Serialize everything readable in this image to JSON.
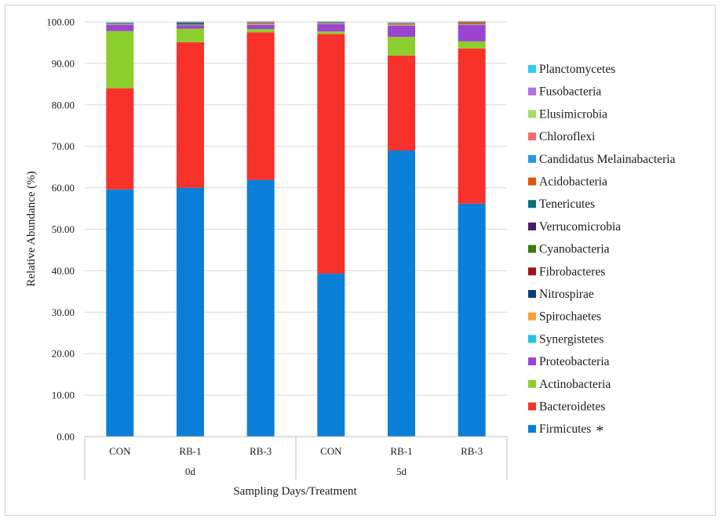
{
  "chart_data": {
    "type": "bar",
    "stacked": true,
    "title": "",
    "xlabel": "Sampling Days/Treatment",
    "ylabel": "Relative Abundance (%)",
    "ylim": [
      0,
      100
    ],
    "yticks": [
      "0.00",
      "10.00",
      "20.00",
      "30.00",
      "40.00",
      "50.00",
      "60.00",
      "70.00",
      "80.00",
      "90.00",
      "100.00"
    ],
    "grid": true,
    "legend_position": "right",
    "categories": [
      "CON",
      "RB-1",
      "RB-3",
      "CON",
      "RB-1",
      "RB-3"
    ],
    "groups": [
      {
        "label": "0d",
        "categories": [
          "CON",
          "RB-1",
          "RB-3"
        ]
      },
      {
        "label": "5d",
        "categories": [
          "CON",
          "RB-1",
          "RB-3"
        ]
      }
    ],
    "series": [
      {
        "name": "Firmicutes",
        "color": "#0a7fd8",
        "values": [
          59.6,
          60.0,
          61.9,
          39.3,
          69.0,
          56.2
        ]
      },
      {
        "name": "Bacteroidetes",
        "color": "#f8312b",
        "values": [
          24.4,
          35.1,
          35.6,
          57.8,
          22.9,
          37.4
        ]
      },
      {
        "name": "Actinobacteria",
        "color": "#8ccf2c",
        "values": [
          13.8,
          3.3,
          0.8,
          0.6,
          4.5,
          1.7
        ]
      },
      {
        "name": "Proteobacteria",
        "color": "#9b45d2",
        "values": [
          1.5,
          0.8,
          1.0,
          1.8,
          2.7,
          4.0
        ]
      },
      {
        "name": "Synergistetes",
        "color": "#20c4e3",
        "values": [
          0.05,
          0.05,
          0.05,
          0.05,
          0.05,
          0.05
        ]
      },
      {
        "name": "Spirochaetes",
        "color": "#f7a03c",
        "values": [
          0.1,
          0.05,
          0.2,
          0.1,
          0.25,
          0.1
        ]
      },
      {
        "name": "Nitrospirae",
        "color": "#0d3f7a",
        "values": [
          0.05,
          0.05,
          0.05,
          0.05,
          0.05,
          0.05
        ]
      },
      {
        "name": "Fibrobacteres",
        "color": "#a11515",
        "values": [
          0.05,
          0.05,
          0.05,
          0.05,
          0.05,
          0.05
        ]
      },
      {
        "name": "Cyanobacteria",
        "color": "#3d7a10",
        "values": [
          0.05,
          0.05,
          0.05,
          0.05,
          0.05,
          0.05
        ]
      },
      {
        "name": "Verrucomicrobia",
        "color": "#4a1a6e",
        "values": [
          0.05,
          0.1,
          0.05,
          0.05,
          0.05,
          0.05
        ]
      },
      {
        "name": "Tenericutes",
        "color": "#08727a",
        "values": [
          0.05,
          0.3,
          0.05,
          0.05,
          0.05,
          0.05
        ]
      },
      {
        "name": "Acidobacteria",
        "color": "#e0550c",
        "values": [
          0.05,
          0.05,
          0.1,
          0.05,
          0.05,
          0.3
        ]
      },
      {
        "name": "Candidatus Melainabacteria",
        "color": "#2c95e0",
        "values": [
          0.05,
          0.05,
          0.05,
          0.05,
          0.05,
          0.05
        ]
      },
      {
        "name": "Chloroflexi",
        "color": "#f86a6a",
        "values": [
          0.05,
          0.05,
          0.05,
          0.05,
          0.05,
          0.05
        ]
      },
      {
        "name": "Elusimicrobia",
        "color": "#a8dd62",
        "values": [
          0.05,
          0.05,
          0.05,
          0.05,
          0.05,
          0.05
        ]
      },
      {
        "name": "Fusobacteria",
        "color": "#b071dc",
        "values": [
          0.05,
          0.05,
          0.05,
          0.05,
          0.05,
          0.05
        ]
      },
      {
        "name": "Planctomycetes",
        "color": "#2ecdf0",
        "values": [
          0.05,
          0.05,
          0.05,
          0.05,
          0.05,
          0.05
        ]
      }
    ],
    "legend_order": [
      "Planctomycetes",
      "Fusobacteria",
      "Elusimicrobia",
      "Chloroflexi",
      "Candidatus Melainabacteria",
      "Acidobacteria",
      "Tenericutes",
      "Verrucomicrobia",
      "Cyanobacteria",
      "Fibrobacteres",
      "Nitrospirae",
      "Spirochaetes",
      "Synergistetes",
      "Proteobacteria",
      "Actinobacteria",
      "Bacteroidetes",
      "Firmicutes"
    ],
    "annotations": [
      {
        "series": "Firmicutes",
        "text": "*"
      }
    ]
  }
}
